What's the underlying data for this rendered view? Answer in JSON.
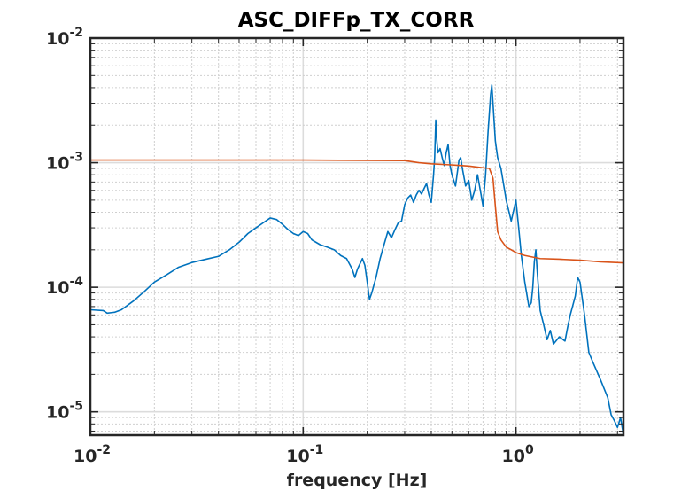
{
  "chart_data": {
    "type": "line",
    "title": "ASC_DIFFp_TX_CORR",
    "xlabel": "frequency [Hz]",
    "ylabel": "",
    "xscale": "log",
    "yscale": "log",
    "xlim": [
      0.01,
      3.2
    ],
    "ylim": [
      6.5e-06,
      0.01
    ],
    "grid": true,
    "legend": "none",
    "x_ticks": [
      {
        "value": 0.01,
        "base": "10",
        "exp": "-2"
      },
      {
        "value": 0.1,
        "base": "10",
        "exp": "-1"
      },
      {
        "value": 1,
        "base": "10",
        "exp": "0"
      }
    ],
    "y_ticks": [
      {
        "value": 0.01,
        "base": "10",
        "exp": "-2"
      },
      {
        "value": 0.001,
        "base": "10",
        "exp": "-3"
      },
      {
        "value": 0.0001,
        "base": "10",
        "exp": "-4"
      },
      {
        "value": 1e-05,
        "base": "10",
        "exp": "-5"
      }
    ],
    "colors": {
      "series_1": "#0072bd",
      "series_2": "#d95319"
    },
    "series": [
      {
        "color": "#0072bd",
        "points": [
          [
            0.01,
            6.6e-05
          ],
          [
            0.0115,
            6.5e-05
          ],
          [
            0.012,
            6.2e-05
          ],
          [
            0.013,
            6.3e-05
          ],
          [
            0.014,
            6.6e-05
          ],
          [
            0.016,
            7.8e-05
          ],
          [
            0.018,
            9.3e-05
          ],
          [
            0.02,
            0.00011
          ],
          [
            0.023,
            0.000127
          ],
          [
            0.026,
            0.000145
          ],
          [
            0.03,
            0.000158
          ],
          [
            0.035,
            0.000168
          ],
          [
            0.04,
            0.000177
          ],
          [
            0.045,
            0.0002
          ],
          [
            0.05,
            0.00023
          ],
          [
            0.055,
            0.00027
          ],
          [
            0.06,
            0.0003
          ],
          [
            0.065,
            0.00033
          ],
          [
            0.07,
            0.00036
          ],
          [
            0.075,
            0.00035
          ],
          [
            0.08,
            0.00032
          ],
          [
            0.085,
            0.00029
          ],
          [
            0.09,
            0.00027
          ],
          [
            0.095,
            0.00026
          ],
          [
            0.1,
            0.00028
          ],
          [
            0.105,
            0.00027
          ],
          [
            0.11,
            0.00024
          ],
          [
            0.12,
            0.00022
          ],
          [
            0.13,
            0.00021
          ],
          [
            0.14,
            0.0002
          ],
          [
            0.15,
            0.00018
          ],
          [
            0.16,
            0.00017
          ],
          [
            0.17,
            0.00014
          ],
          [
            0.175,
            0.00012
          ],
          [
            0.18,
            0.00014
          ],
          [
            0.19,
            0.00017
          ],
          [
            0.195,
            0.00015
          ],
          [
            0.2,
            0.00011
          ],
          [
            0.205,
            8e-05
          ],
          [
            0.21,
            9e-05
          ],
          [
            0.22,
            0.00012
          ],
          [
            0.23,
            0.00017
          ],
          [
            0.24,
            0.00022
          ],
          [
            0.25,
            0.00028
          ],
          [
            0.26,
            0.00025
          ],
          [
            0.27,
            0.00029
          ],
          [
            0.28,
            0.00033
          ],
          [
            0.29,
            0.00034
          ],
          [
            0.3,
            0.00046
          ],
          [
            0.31,
            0.00052
          ],
          [
            0.32,
            0.00055
          ],
          [
            0.33,
            0.00048
          ],
          [
            0.34,
            0.00055
          ],
          [
            0.35,
            0.0006
          ],
          [
            0.36,
            0.00056
          ],
          [
            0.37,
            0.00062
          ],
          [
            0.38,
            0.00068
          ],
          [
            0.39,
            0.00055
          ],
          [
            0.4,
            0.00048
          ],
          [
            0.41,
            0.0008
          ],
          [
            0.415,
            0.0011
          ],
          [
            0.42,
            0.0022
          ],
          [
            0.425,
            0.0015
          ],
          [
            0.43,
            0.0012
          ],
          [
            0.44,
            0.0013
          ],
          [
            0.45,
            0.0011
          ],
          [
            0.46,
            0.00095
          ],
          [
            0.47,
            0.0012
          ],
          [
            0.48,
            0.0014
          ],
          [
            0.49,
            0.00095
          ],
          [
            0.5,
            0.0008
          ],
          [
            0.52,
            0.00065
          ],
          [
            0.54,
            0.00105
          ],
          [
            0.55,
            0.0011
          ],
          [
            0.56,
            0.0009
          ],
          [
            0.58,
            0.00065
          ],
          [
            0.6,
            0.00072
          ],
          [
            0.62,
            0.0005
          ],
          [
            0.64,
            0.0006
          ],
          [
            0.66,
            0.0008
          ],
          [
            0.68,
            0.0006
          ],
          [
            0.7,
            0.00045
          ],
          [
            0.72,
            0.0008
          ],
          [
            0.74,
            0.0018
          ],
          [
            0.76,
            0.0035
          ],
          [
            0.77,
            0.0042
          ],
          [
            0.78,
            0.003
          ],
          [
            0.8,
            0.0015
          ],
          [
            0.82,
            0.0011
          ],
          [
            0.85,
            0.0009
          ],
          [
            0.9,
            0.0005
          ],
          [
            0.95,
            0.00034
          ],
          [
            1.0,
            0.0005
          ],
          [
            1.03,
            0.0003
          ],
          [
            1.06,
            0.00018
          ],
          [
            1.1,
            0.00011
          ],
          [
            1.15,
            7e-05
          ],
          [
            1.18,
            7.5e-05
          ],
          [
            1.2,
            0.0001
          ],
          [
            1.22,
            0.00016
          ],
          [
            1.24,
            0.0002
          ],
          [
            1.26,
            0.00013
          ],
          [
            1.3,
            6.5e-05
          ],
          [
            1.35,
            5e-05
          ],
          [
            1.4,
            3.8e-05
          ],
          [
            1.45,
            4.5e-05
          ],
          [
            1.5,
            3.5e-05
          ],
          [
            1.6,
            4e-05
          ],
          [
            1.7,
            3.7e-05
          ],
          [
            1.75,
            4.8e-05
          ],
          [
            1.8,
            6e-05
          ],
          [
            1.9,
            8.5e-05
          ],
          [
            1.95,
            0.00012
          ],
          [
            2.0,
            0.00011
          ],
          [
            2.1,
            6e-05
          ],
          [
            2.2,
            3e-05
          ],
          [
            2.3,
            2.5e-05
          ],
          [
            2.5,
            1.8e-05
          ],
          [
            2.7,
            1.3e-05
          ],
          [
            2.8,
            9.5e-06
          ],
          [
            2.9,
            8.5e-06
          ],
          [
            3.0,
            7.5e-06
          ],
          [
            3.1,
            9e-06
          ],
          [
            3.2,
            6.5e-06
          ]
        ]
      },
      {
        "color": "#d95319",
        "points": [
          [
            0.01,
            0.00105
          ],
          [
            0.1,
            0.00105
          ],
          [
            0.3,
            0.00104
          ],
          [
            0.35,
            0.001
          ],
          [
            0.4,
            0.00098
          ],
          [
            0.5,
            0.00096
          ],
          [
            0.6,
            0.00094
          ],
          [
            0.7,
            0.00091
          ],
          [
            0.75,
            0.0009
          ],
          [
            0.78,
            0.00075
          ],
          [
            0.8,
            0.00045
          ],
          [
            0.82,
            0.00028
          ],
          [
            0.85,
            0.00024
          ],
          [
            0.9,
            0.00021
          ],
          [
            0.95,
            0.0002
          ],
          [
            1.0,
            0.00019
          ],
          [
            1.1,
            0.00018
          ],
          [
            1.3,
            0.00017
          ],
          [
            1.6,
            0.000168
          ],
          [
            2.0,
            0.000165
          ],
          [
            2.5,
            0.00016
          ],
          [
            3.2,
            0.000157
          ]
        ]
      }
    ]
  }
}
